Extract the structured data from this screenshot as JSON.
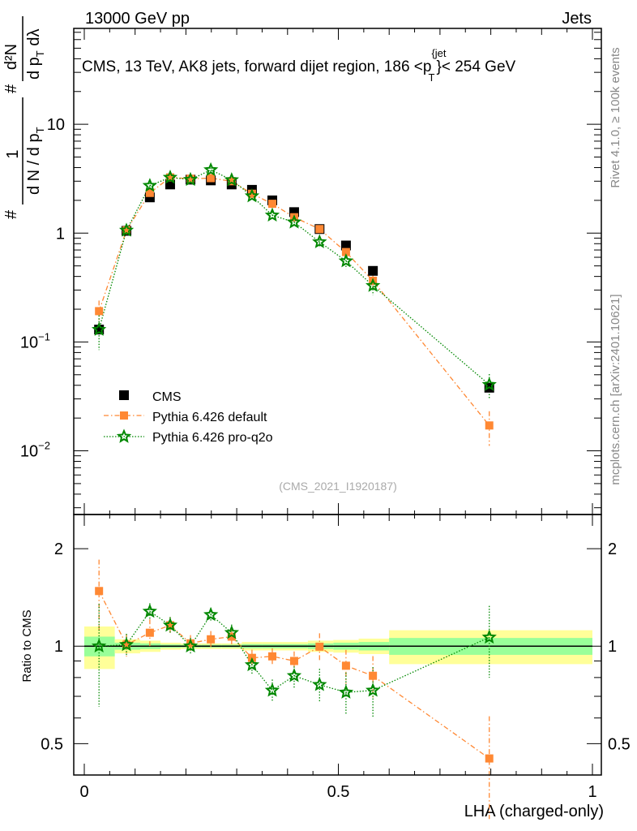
{
  "header": {
    "left": "13000 GeV pp",
    "right": "Jets"
  },
  "side_labels": {
    "rivet": "Rivet 4.1.0, ≥ 100k events",
    "mcplots": "mcplots.cern.ch [arXiv:2401.10621]"
  },
  "watermark": "(CMS_2021_I1920187)",
  "title": {
    "main": "CMS, 13 TeV, AK8 jets, forward dijet region, 186 <p",
    "sup": "{jet",
    "sub": "T",
    "tail": "}< 254 GeV"
  },
  "ylabel": {
    "num1": "1",
    "den1": "d N / d p",
    "den1_sub": "T",
    "num2": "d²N",
    "den2": "d p",
    "den2_sub": "T",
    "den2_tail": " dλ",
    "hash": "#"
  },
  "chart_data": [
    {
      "type": "scatter",
      "title": "CMS, 13 TeV, AK8 jets, forward dijet region, 186 < pT jet < 254 GeV",
      "xlabel": "LHA (charged-only)",
      "ylabel": "1/(dN/dpT) d²N/(dpT dλ)",
      "xlim": [
        0,
        1
      ],
      "ylim": [
        0.0026,
        76
      ],
      "yscale": "log",
      "x_ticks": [
        "0",
        "0.5",
        "1"
      ],
      "y_ticks": [
        {
          "v": 10,
          "label": "10"
        },
        {
          "v": 1,
          "label": "1"
        },
        {
          "v": 0.1,
          "label": "10",
          "exp": "−1"
        },
        {
          "v": 0.01,
          "label": "10",
          "exp": "−2"
        }
      ],
      "legend": {
        "placement": "lower-left",
        "entries": [
          "CMS",
          "Pythia 6.426 default",
          "Pythia 6.426 pro-q2o"
        ]
      },
      "x": [
        0.029,
        0.083,
        0.129,
        0.169,
        0.209,
        0.249,
        0.29,
        0.33,
        0.37,
        0.413,
        0.463,
        0.515,
        0.568,
        0.797
      ],
      "series": [
        {
          "name": "CMS",
          "color": "#000000",
          "marker": "square",
          "values": [
            0.13,
            1.05,
            2.13,
            2.8,
            3.1,
            3.05,
            2.8,
            2.5,
            2.0,
            1.56,
            1.09,
            0.77,
            0.45,
            0.038
          ]
        },
        {
          "name": "Pythia 6.426 default",
          "color": "#ff8833",
          "marker": "square",
          "line": "dashdot",
          "values": [
            0.192,
            1.06,
            2.34,
            3.25,
            3.16,
            3.2,
            3.0,
            2.3,
            1.86,
            1.4,
            1.09,
            0.67,
            0.365,
            0.0171
          ],
          "rel_err": [
            0.25,
            0.08,
            0.1,
            0.06,
            0.06,
            0.06,
            0.06,
            0.06,
            0.06,
            0.07,
            0.1,
            0.12,
            0.15,
            0.35
          ]
        },
        {
          "name": "Pythia 6.426 pro-q2o",
          "color": "#008800",
          "marker": "star",
          "line": "dotted",
          "values": [
            0.13,
            1.06,
            2.73,
            3.25,
            3.1,
            3.81,
            3.08,
            2.19,
            1.46,
            1.26,
            0.83,
            0.554,
            0.329,
            0.0405
          ],
          "rel_err": [
            0.35,
            0.08,
            0.06,
            0.06,
            0.06,
            0.05,
            0.06,
            0.07,
            0.08,
            0.09,
            0.12,
            0.15,
            0.18,
            0.25
          ]
        }
      ]
    },
    {
      "type": "scatter",
      "ylabel": "Ratio to CMS",
      "xlabel": "LHA (charged-only)",
      "xlim": [
        0,
        1
      ],
      "ylim": [
        0.4,
        2.55
      ],
      "yscale": "log",
      "y_ticks": [
        {
          "v": 2,
          "label": "2"
        },
        {
          "v": 1,
          "label": "1"
        },
        {
          "v": 0.5,
          "label": "0.5"
        }
      ],
      "bin_edges": [
        0,
        0.06,
        0.11,
        0.15,
        0.19,
        0.23,
        0.27,
        0.31,
        0.35,
        0.39,
        0.44,
        0.49,
        0.54,
        0.6,
        1.0
      ],
      "band_outer_halfwidth": [
        0.15,
        0.05,
        0.04,
        0.025,
        0.02,
        0.02,
        0.02,
        0.03,
        0.03,
        0.03,
        0.04,
        0.045,
        0.055,
        0.12
      ],
      "band_inner_halfwidth": [
        0.07,
        0.025,
        0.02,
        0.012,
        0.01,
        0.01,
        0.01,
        0.015,
        0.015,
        0.015,
        0.02,
        0.025,
        0.03,
        0.06
      ],
      "band_colors": {
        "outer": "#ffff99",
        "inner": "#99ff99"
      },
      "series": [
        {
          "name": "Pythia 6.426 default",
          "values": [
            1.48,
            1.01,
            1.1,
            1.16,
            1.02,
            1.05,
            1.07,
            0.92,
            0.93,
            0.9,
            0.996,
            0.87,
            0.81,
            0.45
          ]
        },
        {
          "name": "Pythia 6.426 pro-q2o",
          "values": [
            1.0,
            1.01,
            1.28,
            1.16,
            1.0,
            1.25,
            1.1,
            0.875,
            0.73,
            0.81,
            0.76,
            0.72,
            0.73,
            1.065
          ]
        }
      ]
    }
  ]
}
